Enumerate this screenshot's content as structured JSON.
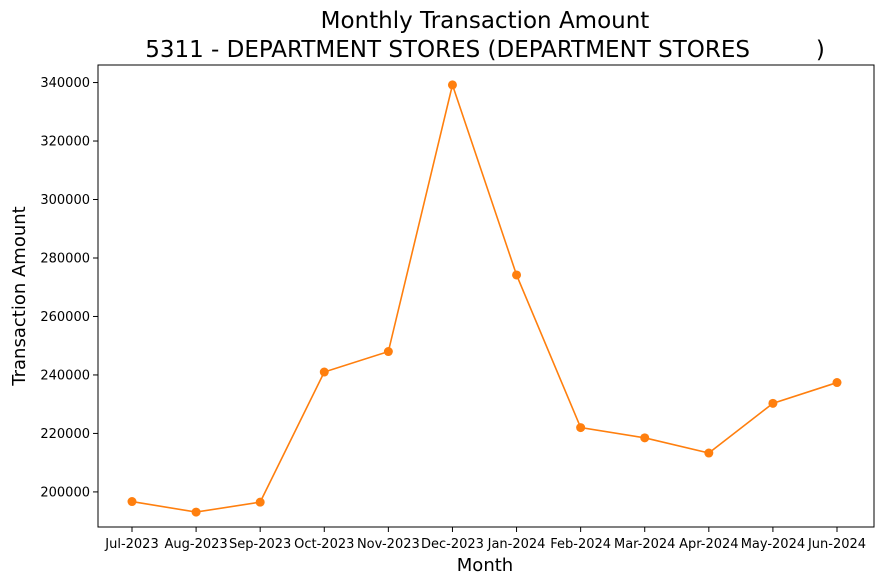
{
  "chart_data": {
    "type": "line",
    "title": "Monthly Transaction Amount",
    "subtitle": "5311 - DEPARTMENT STORES (DEPARTMENT STORES         )",
    "xlabel": "Month",
    "ylabel": "Transaction Amount",
    "categories": [
      "Jul-2023",
      "Aug-2023",
      "Sep-2023",
      "Oct-2023",
      "Nov-2023",
      "Dec-2023",
      "Jan-2024",
      "Feb-2024",
      "Mar-2024",
      "Apr-2024",
      "May-2024",
      "Jun-2024"
    ],
    "series": [
      {
        "values": [
          196700,
          193100,
          196500,
          241000,
          248000,
          339200,
          274200,
          222000,
          218500,
          213300,
          230300,
          237400
        ],
        "color": "#ff7f0e",
        "marker": "circle"
      }
    ],
    "ylim": [
      188000,
      346000
    ],
    "yticks": [
      200000,
      220000,
      240000,
      260000,
      280000,
      300000,
      320000,
      340000
    ],
    "grid": false,
    "legend": "none"
  }
}
